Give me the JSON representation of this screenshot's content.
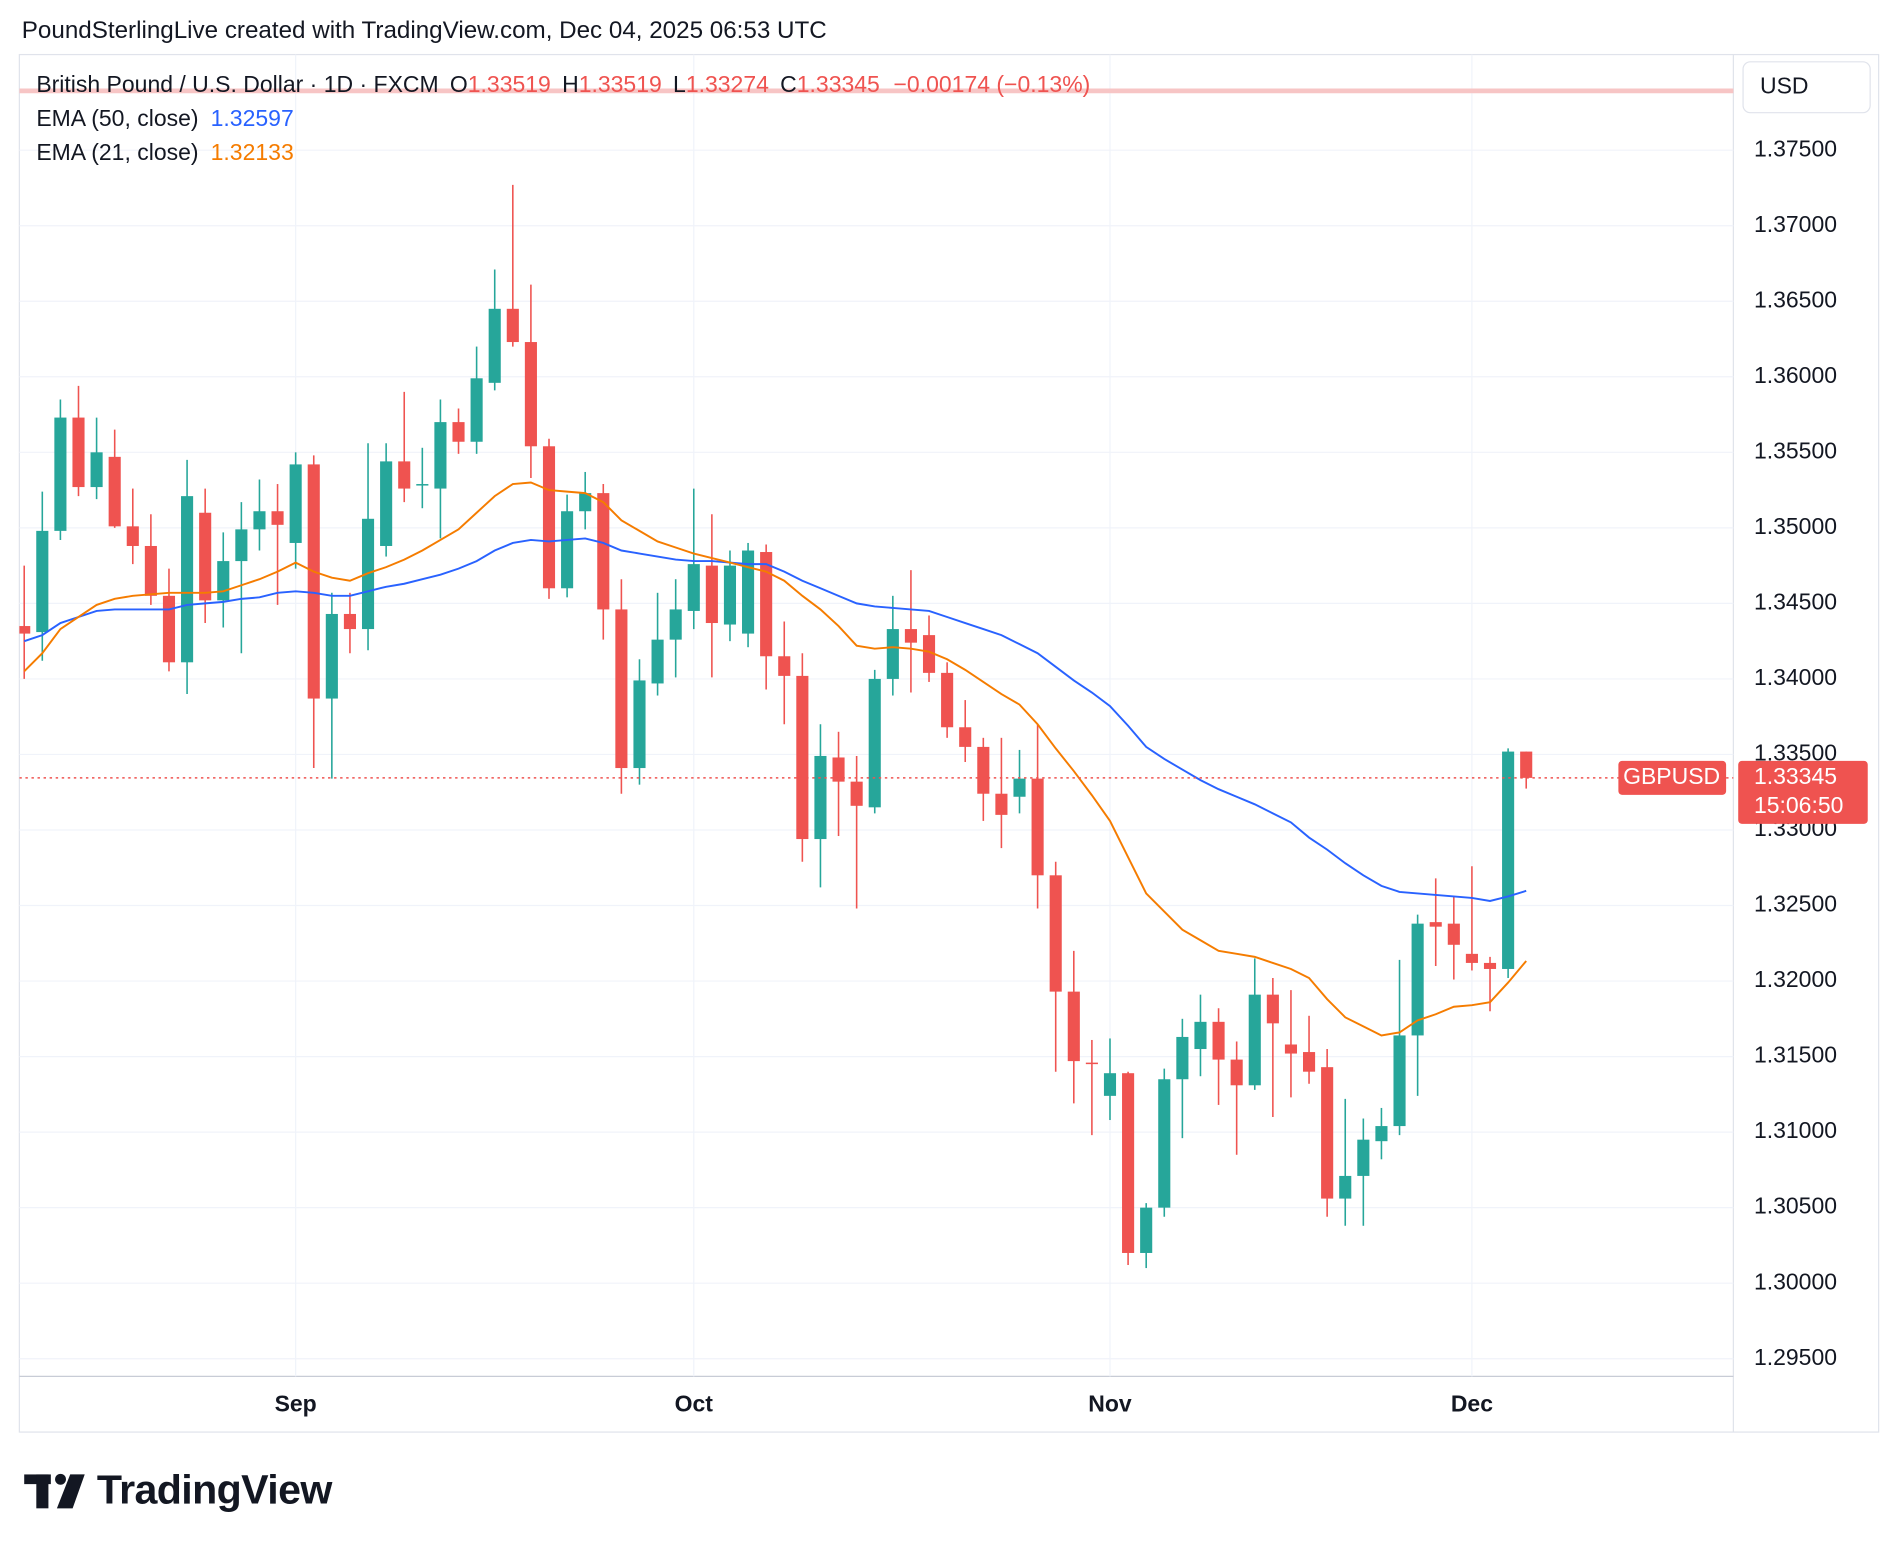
{
  "header": "PoundSterlingLive created with TradingView.com, Dec 04, 2025 06:53 UTC",
  "brand": "TradingView",
  "chart_data": {
    "type": "candlestick",
    "legend": {
      "symbol": "British Pound / U.S. Dollar · 1D · FXCM",
      "o": "O",
      "h": "H",
      "l": "L",
      "c": "C",
      "change": "−0.00174 (−0.13%)"
    },
    "currency": "USD",
    "ticker": "GBPUSD",
    "countdown": "15:06:50",
    "up_color": "#26a69a",
    "down_color": "#ef5350",
    "grid": true,
    "categories": [
      null,
      null,
      null,
      null,
      null,
      null,
      null,
      null,
      null,
      null,
      null,
      null,
      null,
      null,
      null,
      "Sep",
      null,
      null,
      null,
      null,
      null,
      null,
      null,
      null,
      null,
      null,
      null,
      null,
      null,
      null,
      null,
      null,
      null,
      null,
      null,
      null,
      null,
      "Oct",
      null,
      null,
      null,
      null,
      null,
      null,
      null,
      null,
      null,
      null,
      null,
      null,
      null,
      null,
      null,
      null,
      null,
      null,
      null,
      null,
      null,
      null,
      "Nov",
      null,
      null,
      null,
      null,
      null,
      null,
      null,
      null,
      null,
      null,
      null,
      null,
      null,
      null,
      null,
      null,
      null,
      null,
      null,
      "Dec",
      null,
      null,
      null
    ],
    "open": [
      1.3435,
      1.3431,
      1.3498,
      1.3573,
      1.3527,
      1.3547,
      1.3501,
      1.3488,
      1.3455,
      1.3411,
      1.351,
      1.3452,
      1.3478,
      1.3499,
      1.3511,
      1.349,
      1.3542,
      1.3387,
      1.3443,
      1.3433,
      1.3488,
      1.3544,
      1.3528,
      1.3526,
      1.357,
      1.3557,
      1.3596,
      1.3645,
      1.3623,
      1.3554,
      1.346,
      1.3511,
      1.3523,
      1.3446,
      1.3341,
      1.3397,
      1.3426,
      1.3445,
      1.3475,
      1.3436,
      1.343,
      1.3484,
      1.3415,
      1.3402,
      1.3294,
      1.3348,
      1.3332,
      1.3315,
      1.34,
      1.3433,
      1.3429,
      1.3404,
      1.3368,
      1.3355,
      1.3324,
      1.3322,
      1.3334,
      1.327,
      1.3193,
      1.3146,
      1.3124,
      1.3139,
      1.302,
      1.305,
      1.3135,
      1.3155,
      1.3173,
      1.3148,
      1.3131,
      1.3191,
      1.3158,
      1.3153,
      1.3143,
      1.3056,
      1.3071,
      1.3094,
      1.3104,
      1.3164,
      1.3239,
      1.3238,
      1.3218,
      1.3212,
      1.3208,
      1.33519
    ],
    "high": [
      1.3475,
      1.3524,
      1.3585,
      1.3594,
      1.3573,
      1.3565,
      1.3526,
      1.3509,
      1.3473,
      1.3545,
      1.3526,
      1.3497,
      1.3517,
      1.3532,
      1.3529,
      1.355,
      1.3548,
      1.3457,
      1.3457,
      1.3556,
      1.3556,
      1.359,
      1.3553,
      1.3585,
      1.3579,
      1.362,
      1.3671,
      1.3727,
      1.3661,
      1.3559,
      1.3522,
      1.3537,
      1.3529,
      1.3466,
      1.3413,
      1.3457,
      1.3466,
      1.3526,
      1.3509,
      1.3485,
      1.349,
      1.3489,
      1.3438,
      1.3417,
      1.337,
      1.3365,
      1.3349,
      1.3406,
      1.3455,
      1.3472,
      1.3442,
      1.3411,
      1.3386,
      1.3361,
      1.3361,
      1.3353,
      1.337,
      1.3279,
      1.322,
      1.3161,
      1.3162,
      1.314,
      1.3053,
      1.3142,
      1.3175,
      1.3191,
      1.3182,
      1.316,
      1.3215,
      1.3202,
      1.3194,
      1.3177,
      1.3155,
      1.3122,
      1.3109,
      1.3116,
      1.3214,
      1.3244,
      1.3268,
      1.3256,
      1.3276,
      1.3216,
      1.3354,
      1.33519
    ],
    "low": [
      1.34,
      1.3412,
      1.3492,
      1.3521,
      1.3519,
      1.35,
      1.3476,
      1.3449,
      1.3405,
      1.339,
      1.3437,
      1.3434,
      1.3417,
      1.3485,
      1.3449,
      1.3473,
      1.3341,
      1.3334,
      1.3417,
      1.3419,
      1.3481,
      1.3517,
      1.3513,
      1.3493,
      1.3549,
      1.3549,
      1.3591,
      1.362,
      1.3533,
      1.3453,
      1.3454,
      1.3499,
      1.3426,
      1.3324,
      1.333,
      1.3389,
      1.3401,
      1.3433,
      1.3401,
      1.3425,
      1.3421,
      1.3393,
      1.337,
      1.3279,
      1.3262,
      1.3296,
      1.3248,
      1.3311,
      1.3389,
      1.3391,
      1.3398,
      1.3361,
      1.3345,
      1.3306,
      1.3288,
      1.3311,
      1.3248,
      1.314,
      1.3119,
      1.3098,
      1.3108,
      1.3012,
      1.301,
      1.3044,
      1.3096,
      1.3137,
      1.3118,
      1.3085,
      1.3128,
      1.311,
      1.3123,
      1.3132,
      1.3044,
      1.3038,
      1.3038,
      1.3082,
      1.3098,
      1.3124,
      1.321,
      1.3201,
      1.3207,
      1.318,
      1.3202,
      1.33274
    ],
    "close": [
      1.343,
      1.3498,
      1.3573,
      1.3527,
      1.355,
      1.3501,
      1.3488,
      1.3455,
      1.3411,
      1.3521,
      1.3452,
      1.3478,
      1.3499,
      1.3511,
      1.3502,
      1.3542,
      1.3387,
      1.3443,
      1.3433,
      1.3506,
      1.3544,
      1.3526,
      1.3529,
      1.357,
      1.3557,
      1.3599,
      1.3645,
      1.3623,
      1.3554,
      1.346,
      1.3511,
      1.3523,
      1.3446,
      1.3341,
      1.3399,
      1.3426,
      1.3446,
      1.3476,
      1.3437,
      1.3475,
      1.3485,
      1.3415,
      1.3402,
      1.3294,
      1.3349,
      1.3332,
      1.3316,
      1.34,
      1.3433,
      1.3424,
      1.3404,
      1.3368,
      1.3355,
      1.3324,
      1.331,
      1.3334,
      1.327,
      1.3193,
      1.3147,
      1.3145,
      1.3139,
      1.302,
      1.305,
      1.3135,
      1.3163,
      1.3173,
      1.3148,
      1.3131,
      1.3191,
      1.3172,
      1.3152,
      1.314,
      1.3056,
      1.3071,
      1.3095,
      1.3104,
      1.3164,
      1.3238,
      1.3236,
      1.3224,
      1.3212,
      1.3208,
      1.33519,
      1.33345
    ],
    "series": [
      {
        "name": "EMA (50, close)",
        "color": "#2962ff",
        "values": [
          1.3425,
          1.3429,
          1.3437,
          1.3441,
          1.3445,
          1.3446,
          1.3446,
          1.3446,
          1.3446,
          1.3449,
          1.345,
          1.3451,
          1.3453,
          1.3454,
          1.3457,
          1.3458,
          1.3457,
          1.3455,
          1.3455,
          1.3458,
          1.3461,
          1.3463,
          1.3466,
          1.3469,
          1.3473,
          1.3478,
          1.3485,
          1.349,
          1.3492,
          1.3491,
          1.3492,
          1.3493,
          1.349,
          1.3485,
          1.3483,
          1.3481,
          1.3479,
          1.3478,
          1.3478,
          1.3477,
          1.3476,
          1.3476,
          1.3471,
          1.3465,
          1.346,
          1.3455,
          1.345,
          1.3448,
          1.3447,
          1.3446,
          1.3445,
          1.3441,
          1.3437,
          1.3433,
          1.3429,
          1.3423,
          1.3417,
          1.3408,
          1.3399,
          1.3391,
          1.3382,
          1.3369,
          1.3355,
          1.3347,
          1.334,
          1.3333,
          1.3327,
          1.3322,
          1.3317,
          1.3311,
          1.3305,
          1.3295,
          1.3287,
          1.3278,
          1.327,
          1.3263,
          1.3259,
          1.3258,
          1.3257,
          1.3256,
          1.3255,
          1.3253,
          1.3256,
          1.32597
        ]
      },
      {
        "name": "EMA (21, close)",
        "color": "#f57c00",
        "values": [
          1.3405,
          1.3417,
          1.3433,
          1.3441,
          1.3449,
          1.3453,
          1.3455,
          1.3456,
          1.3457,
          1.3457,
          1.3457,
          1.3458,
          1.3462,
          1.3466,
          1.3471,
          1.3477,
          1.3471,
          1.3467,
          1.3465,
          1.347,
          1.3474,
          1.3479,
          1.3485,
          1.3492,
          1.3499,
          1.351,
          1.3521,
          1.3529,
          1.353,
          1.3525,
          1.3524,
          1.3523,
          1.3517,
          1.3505,
          1.3498,
          1.3491,
          1.3487,
          1.3483,
          1.348,
          1.3477,
          1.3474,
          1.3471,
          1.3465,
          1.3455,
          1.3446,
          1.3435,
          1.3422,
          1.342,
          1.3421,
          1.342,
          1.3418,
          1.3413,
          1.3406,
          1.3398,
          1.339,
          1.3383,
          1.337,
          1.3354,
          1.3339,
          1.3323,
          1.3306,
          1.3282,
          1.3258,
          1.3246,
          1.3234,
          1.3227,
          1.322,
          1.3218,
          1.3216,
          1.3212,
          1.3208,
          1.3202,
          1.3188,
          1.3176,
          1.317,
          1.3164,
          1.3166,
          1.3174,
          1.3178,
          1.3183,
          1.3184,
          1.3186,
          1.3199,
          1.32133
        ]
      }
    ],
    "ylim": [
      1.29383,
      1.38133
    ],
    "yticks": [
      {
        "value": 1.295,
        "label": "1.29500"
      },
      {
        "value": 1.3,
        "label": "1.30000"
      },
      {
        "value": 1.305,
        "label": "1.30500"
      },
      {
        "value": 1.31,
        "label": "1.31000"
      },
      {
        "value": 1.315,
        "label": "1.31500"
      },
      {
        "value": 1.32,
        "label": "1.32000"
      },
      {
        "value": 1.325,
        "label": "1.32500"
      },
      {
        "value": 1.33,
        "label": "1.33000"
      },
      {
        "value": 1.335,
        "label": "1.33500"
      },
      {
        "value": 1.34,
        "label": "1.34000"
      },
      {
        "value": 1.345,
        "label": "1.34500"
      },
      {
        "value": 1.35,
        "label": "1.35000"
      },
      {
        "value": 1.355,
        "label": "1.35500"
      },
      {
        "value": 1.36,
        "label": "1.36000"
      },
      {
        "value": 1.365,
        "label": "1.36500"
      },
      {
        "value": 1.37,
        "label": "1.37000"
      },
      {
        "value": 1.375,
        "label": "1.37500"
      }
    ]
  }
}
